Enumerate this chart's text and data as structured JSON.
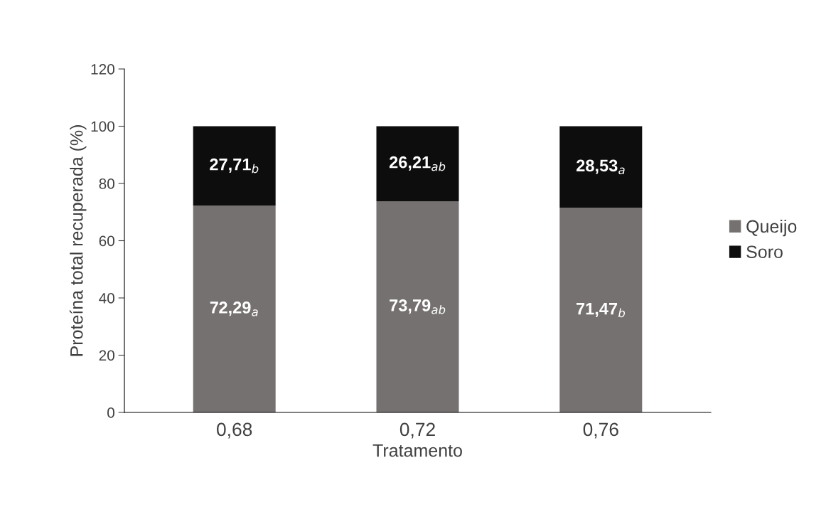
{
  "chart_data": {
    "type": "bar",
    "stacked": true,
    "xlabel": "Tratamento",
    "ylabel": "Proteína total recuperada (%)",
    "categories": [
      "0,68",
      "0,72",
      "0,76"
    ],
    "series": [
      {
        "name": "Queijo",
        "color": "#767171",
        "values": [
          72.29,
          73.79,
          71.47
        ],
        "value_labels": [
          "72,29$_{a}$",
          "73,79$_{ab}$",
          "71,47$_{b}$"
        ]
      },
      {
        "name": "Soro",
        "color": "#0d0d0d",
        "values": [
          27.71,
          26.21,
          28.53
        ],
        "value_labels": [
          "27,71$_{b}$",
          "26,21$_{ab}$",
          "28,53$_{a}$"
        ]
      }
    ],
    "ylim": [
      0,
      120
    ],
    "yticks": [
      0,
      20,
      40,
      60,
      80,
      100,
      120
    ],
    "grid": false,
    "legend": "right"
  }
}
